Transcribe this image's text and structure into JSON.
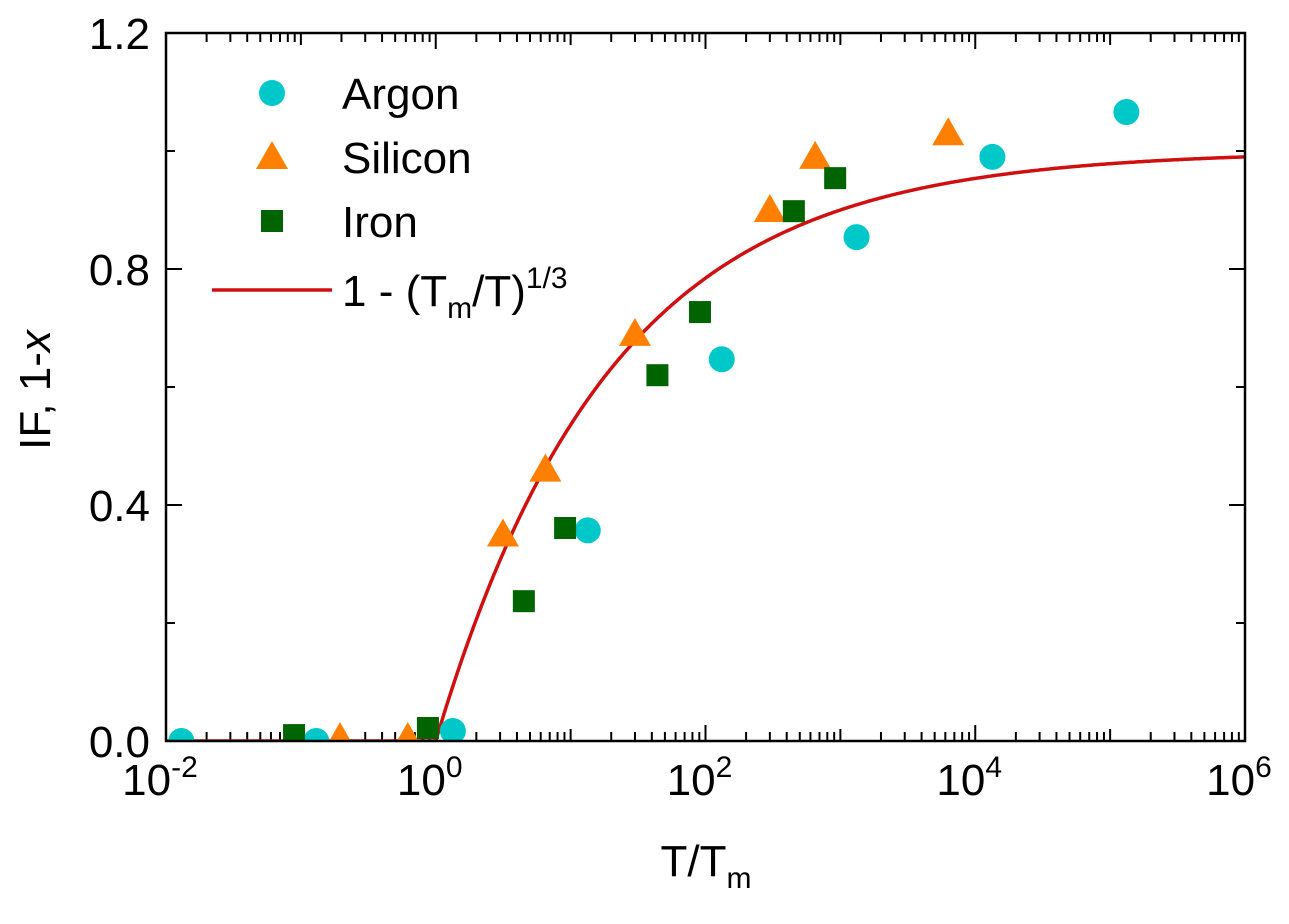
{
  "chart_data": {
    "type": "scatter",
    "title": "",
    "xlabel": "T/T",
    "xlabel_sub": "m",
    "ylabel": "IF, 1-",
    "ylabel_italic": "x",
    "xscale": "log",
    "xlim": [
      0.01,
      1000000
    ],
    "ylim": [
      0,
      1.2
    ],
    "x_ticks": [
      {
        "base": "10",
        "exp": "-2",
        "value": 0.01
      },
      {
        "base": "10",
        "exp": "0",
        "value": 1
      },
      {
        "base": "10",
        "exp": "2",
        "value": 100
      },
      {
        "base": "10",
        "exp": "4",
        "value": 10000
      },
      {
        "base": "10",
        "exp": "6",
        "value": 1000000
      }
    ],
    "y_ticks": [
      {
        "label": "0.0",
        "value": 0
      },
      {
        "label": "0.4",
        "value": 0.4
      },
      {
        "label": "0.8",
        "value": 0.8
      },
      {
        "label": "1.2",
        "value": 1.2
      }
    ],
    "y_minor_ticks": [
      0.2,
      0.6,
      1.0
    ],
    "grid": false,
    "legend_position": "top-left",
    "series": [
      {
        "name": "Argon",
        "marker": "circle",
        "color": "#00c8c8",
        "x": [
          0.013,
          0.13,
          1.34,
          13.4,
          132,
          1318,
          13400,
          132000
        ],
        "y": [
          0.0,
          0.0,
          0.017,
          0.357,
          0.647,
          0.854,
          0.99,
          1.066
        ]
      },
      {
        "name": "Silicon",
        "marker": "triangle",
        "color": "#ff8000",
        "x": [
          0.195,
          0.62,
          3.15,
          6.5,
          30,
          300,
          650,
          6300
        ],
        "y": [
          0.005,
          0.005,
          0.35,
          0.46,
          0.69,
          0.9,
          0.99,
          1.03
        ]
      },
      {
        "name": "Iron",
        "marker": "square",
        "color": "#006400",
        "x": [
          0.089,
          0.875,
          4.5,
          9.1,
          44,
          91,
          452,
          915
        ],
        "y": [
          0.01,
          0.022,
          0.237,
          0.361,
          0.62,
          0.727,
          0.898,
          0.954
        ]
      }
    ],
    "curve": {
      "name_prefix": "1 - (T",
      "name_sub": "m",
      "name_mid": "/T)",
      "name_sup": "1/3",
      "formula": "1-(Tm/T)^(1/3) for T>Tm, else 0",
      "color": "#d01010"
    }
  }
}
